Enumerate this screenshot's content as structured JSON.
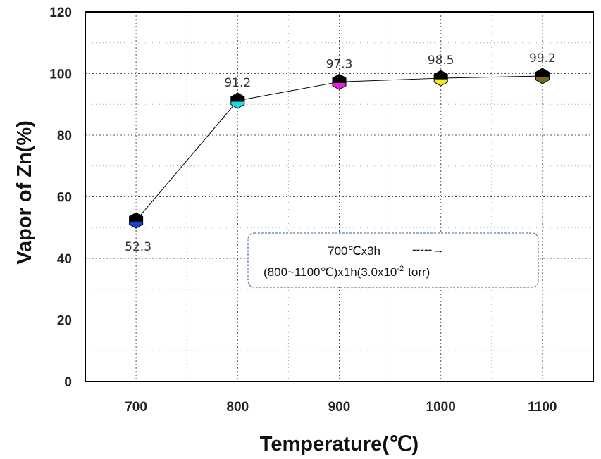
{
  "chart_data": {
    "type": "line",
    "xlabel": "Temperature(℃)",
    "ylabel": "Vapor of Zn(%)",
    "categories": [
      "700",
      "800",
      "900",
      "1000",
      "1100"
    ],
    "x": [
      700,
      800,
      900,
      1000,
      1100
    ],
    "y": [
      52.3,
      91.2,
      97.3,
      98.5,
      99.2
    ],
    "data_labels": [
      "52.3",
      "91.2",
      "97.3",
      "98.5",
      "99.2"
    ],
    "y_ticks": [
      "0",
      "20",
      "40",
      "60",
      "80",
      "100",
      "120"
    ],
    "ylim": [
      0,
      120
    ],
    "grid": true,
    "legend": "none",
    "marker_colors": [
      "#1a3fd8",
      "#22d8e6",
      "#e61ee0",
      "#f2ea1a",
      "#7a6a18"
    ],
    "annotation": {
      "line1": "700℃x3h",
      "arrow": "-----→",
      "line2_main": "(800~1100℃)x1h(3.0x10",
      "line2_sup": "-2",
      "line2_end": "torr)"
    }
  }
}
